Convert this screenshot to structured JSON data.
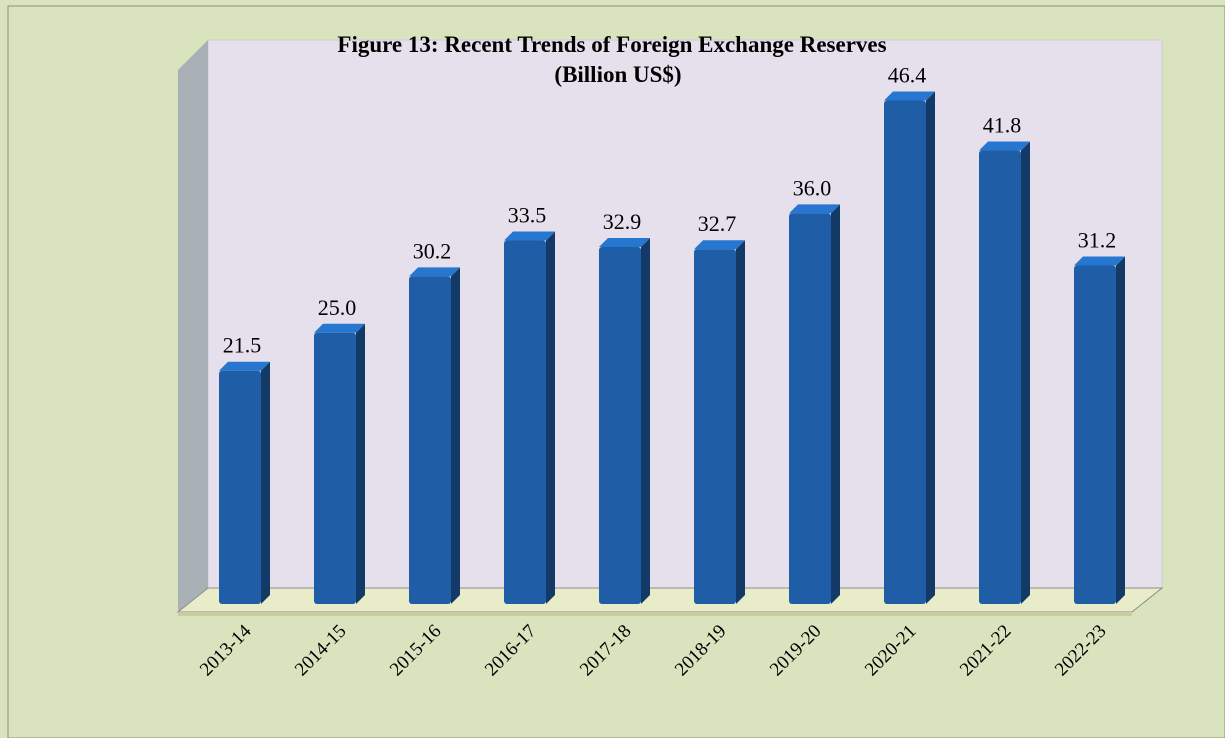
{
  "chart_data": {
    "type": "bar",
    "title": "Figure 13: Recent Trends of Foreign Exchange Reserves",
    "subtitle": "(Billion US$)",
    "categories": [
      "2013-14",
      "2014-15",
      "2015-16",
      "2016-17",
      "2017-18",
      "2018-19",
      "2019-20",
      "2020-21",
      "2021-22",
      "2022-23"
    ],
    "values": [
      21.5,
      25.0,
      30.2,
      33.5,
      32.9,
      32.7,
      36.0,
      46.4,
      41.8,
      31.2
    ],
    "value_labels": [
      "21.5",
      "25.0",
      "30.2",
      "33.5",
      "32.9",
      "32.7",
      "36.0",
      "46.4",
      "41.8",
      "31.2"
    ],
    "color": "#1f5ea6"
  }
}
